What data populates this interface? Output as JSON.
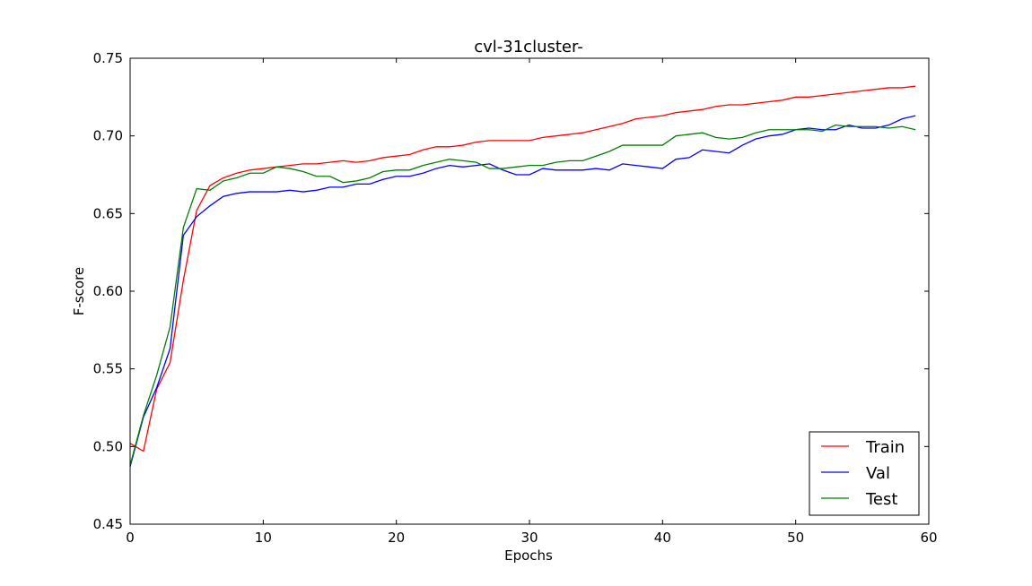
{
  "chart_data": {
    "type": "line",
    "title": "cvl-31cluster-",
    "xlabel": "Epochs",
    "ylabel": "F-score",
    "xlim": [
      0,
      60
    ],
    "ylim": [
      0.45,
      0.75
    ],
    "xticks": [
      0,
      10,
      20,
      30,
      40,
      50,
      60
    ],
    "yticks": [
      0.45,
      0.5,
      0.55,
      0.6,
      0.65,
      0.7,
      0.75
    ],
    "xtick_labels": [
      "0",
      "10",
      "20",
      "30",
      "40",
      "50",
      "60"
    ],
    "ytick_labels": [
      "0.45",
      "0.50",
      "0.55",
      "0.60",
      "0.65",
      "0.70",
      "0.75"
    ],
    "grid": false,
    "legend_position": "bottom-right",
    "x": [
      0,
      1,
      2,
      3,
      4,
      5,
      6,
      7,
      8,
      9,
      10,
      11,
      12,
      13,
      14,
      15,
      16,
      17,
      18,
      19,
      20,
      21,
      22,
      23,
      24,
      25,
      26,
      27,
      28,
      29,
      30,
      31,
      32,
      33,
      34,
      35,
      36,
      37,
      38,
      39,
      40,
      41,
      42,
      43,
      44,
      45,
      46,
      47,
      48,
      49,
      50,
      51,
      52,
      53,
      54,
      55,
      56,
      57,
      58,
      59
    ],
    "series": [
      {
        "name": "Train",
        "color": "#ff0000",
        "values": [
          0.502,
          0.497,
          0.537,
          0.554,
          0.607,
          0.652,
          0.668,
          0.673,
          0.676,
          0.678,
          0.679,
          0.68,
          0.681,
          0.682,
          0.682,
          0.683,
          0.684,
          0.683,
          0.684,
          0.686,
          0.687,
          0.688,
          0.691,
          0.693,
          0.693,
          0.694,
          0.696,
          0.697,
          0.697,
          0.697,
          0.697,
          0.699,
          0.7,
          0.701,
          0.702,
          0.704,
          0.706,
          0.708,
          0.711,
          0.712,
          0.713,
          0.715,
          0.716,
          0.717,
          0.719,
          0.72,
          0.72,
          0.721,
          0.722,
          0.723,
          0.725,
          0.725,
          0.726,
          0.727,
          0.728,
          0.729,
          0.73,
          0.731,
          0.731,
          0.732
        ]
      },
      {
        "name": "Val",
        "color": "#0000ff",
        "values": [
          0.487,
          0.519,
          0.538,
          0.563,
          0.636,
          0.648,
          0.655,
          0.661,
          0.663,
          0.664,
          0.664,
          0.664,
          0.665,
          0.664,
          0.665,
          0.667,
          0.667,
          0.669,
          0.669,
          0.672,
          0.674,
          0.674,
          0.676,
          0.679,
          0.681,
          0.68,
          0.681,
          0.682,
          0.678,
          0.675,
          0.675,
          0.679,
          0.678,
          0.678,
          0.678,
          0.679,
          0.678,
          0.682,
          0.681,
          0.68,
          0.679,
          0.685,
          0.686,
          0.691,
          0.69,
          0.689,
          0.694,
          0.698,
          0.7,
          0.701,
          0.704,
          0.705,
          0.704,
          0.704,
          0.707,
          0.705,
          0.705,
          0.707,
          0.711,
          0.713
        ]
      },
      {
        "name": "Test",
        "color": "#008000",
        "values": [
          0.488,
          0.52,
          0.546,
          0.577,
          0.641,
          0.666,
          0.665,
          0.671,
          0.673,
          0.676,
          0.676,
          0.68,
          0.679,
          0.677,
          0.674,
          0.674,
          0.67,
          0.671,
          0.673,
          0.677,
          0.678,
          0.678,
          0.681,
          0.683,
          0.685,
          0.684,
          0.683,
          0.679,
          0.679,
          0.68,
          0.681,
          0.681,
          0.683,
          0.684,
          0.684,
          0.687,
          0.69,
          0.694,
          0.694,
          0.694,
          0.694,
          0.7,
          0.701,
          0.702,
          0.699,
          0.698,
          0.699,
          0.702,
          0.704,
          0.704,
          0.704,
          0.704,
          0.703,
          0.707,
          0.706,
          0.706,
          0.706,
          0.705,
          0.706,
          0.704
        ]
      }
    ]
  }
}
